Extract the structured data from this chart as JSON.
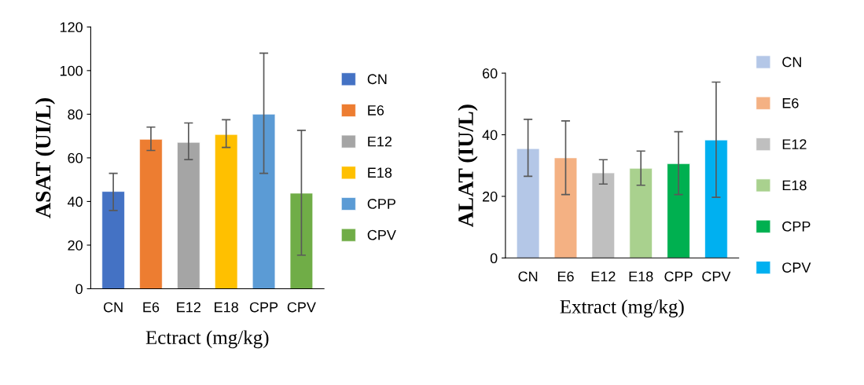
{
  "chart_data": [
    {
      "type": "bar",
      "ylabel": "ASAT (UI/L)",
      "xlabel": "Ectract (mg/kg)",
      "categories": [
        "CN",
        "E6",
        "E12",
        "E18",
        "CPP",
        "CPV"
      ],
      "series": [
        {
          "name": "CN",
          "color": "#4472c4",
          "values": [
            44.6,
            null,
            null,
            null,
            null,
            null
          ],
          "errors": [
            [
              35.9,
              52.9
            ],
            null,
            null,
            null,
            null,
            null
          ]
        },
        {
          "name": "E6",
          "color": "#ed7d31",
          "values": [
            null,
            68.5,
            null,
            null,
            null,
            null
          ],
          "errors": [
            null,
            [
              63.4,
              74.1
            ],
            null,
            null,
            null,
            null
          ]
        },
        {
          "name": "E12",
          "color": "#a5a5a5",
          "values": [
            null,
            null,
            67.1,
            null,
            null,
            null
          ],
          "errors": [
            null,
            null,
            [
              59.2,
              76
            ],
            null,
            null,
            null
          ]
        },
        {
          "name": "E18",
          "color": "#ffc000",
          "values": [
            null,
            null,
            null,
            70.7,
            null,
            null
          ],
          "errors": [
            null,
            null,
            null,
            [
              64.8,
              77.5
            ],
            null,
            null
          ]
        },
        {
          "name": "CPP",
          "color": "#5b9bd5",
          "values": [
            null,
            null,
            null,
            null,
            80,
            null
          ],
          "errors": [
            null,
            null,
            null,
            null,
            [
              52.9,
              108
            ],
            null
          ]
        },
        {
          "name": "CPV",
          "color": "#70ad47",
          "values": [
            null,
            null,
            null,
            null,
            null,
            43.8
          ],
          "errors": [
            null,
            null,
            null,
            null,
            null,
            [
              15.4,
              72.6
            ]
          ]
        }
      ],
      "ylim": [
        0,
        120
      ],
      "yticks": [
        0,
        20,
        40,
        60,
        80,
        100,
        120
      ],
      "legend": "right"
    },
    {
      "type": "bar",
      "ylabel": "ALAT (IU/L)",
      "xlabel": "Extract (mg/kg)",
      "categories": [
        "CN",
        "E6",
        "E12",
        "E18",
        "CPP",
        "CPV"
      ],
      "series": [
        {
          "name": "CN",
          "color": "#b4c7e7",
          "values": [
            35.5,
            null,
            null,
            null,
            null,
            null
          ],
          "errors": [
            [
              26.5,
              45
            ],
            null,
            null,
            null,
            null,
            null
          ]
        },
        {
          "name": "E6",
          "color": "#f4b183",
          "values": [
            null,
            32.5,
            null,
            null,
            null,
            null
          ],
          "errors": [
            null,
            [
              20.6,
              44.5
            ],
            null,
            null,
            null,
            null
          ]
        },
        {
          "name": "E12",
          "color": "#bfbfbf",
          "values": [
            null,
            null,
            27.6,
            null,
            null,
            null
          ],
          "errors": [
            null,
            null,
            [
              24,
              31.9
            ],
            null,
            null,
            null
          ]
        },
        {
          "name": "E18",
          "color": "#a9d18e",
          "values": [
            null,
            null,
            null,
            29.1,
            null,
            null
          ],
          "errors": [
            null,
            null,
            null,
            [
              23.6,
              34.7
            ],
            null,
            null
          ]
        },
        {
          "name": "CPP",
          "color": "#00b050",
          "values": [
            null,
            null,
            null,
            null,
            30.6,
            null
          ],
          "errors": [
            null,
            null,
            null,
            null,
            [
              20.6,
              41
            ],
            null
          ]
        },
        {
          "name": "CPV",
          "color": "#00b0f0",
          "values": [
            null,
            null,
            null,
            null,
            null,
            38.3
          ],
          "errors": [
            null,
            null,
            null,
            null,
            null,
            [
              19.7,
              57.1
            ]
          ]
        }
      ],
      "ylim": [
        0,
        60
      ],
      "yticks": [
        0,
        20,
        40,
        60
      ],
      "legend": "right"
    }
  ]
}
